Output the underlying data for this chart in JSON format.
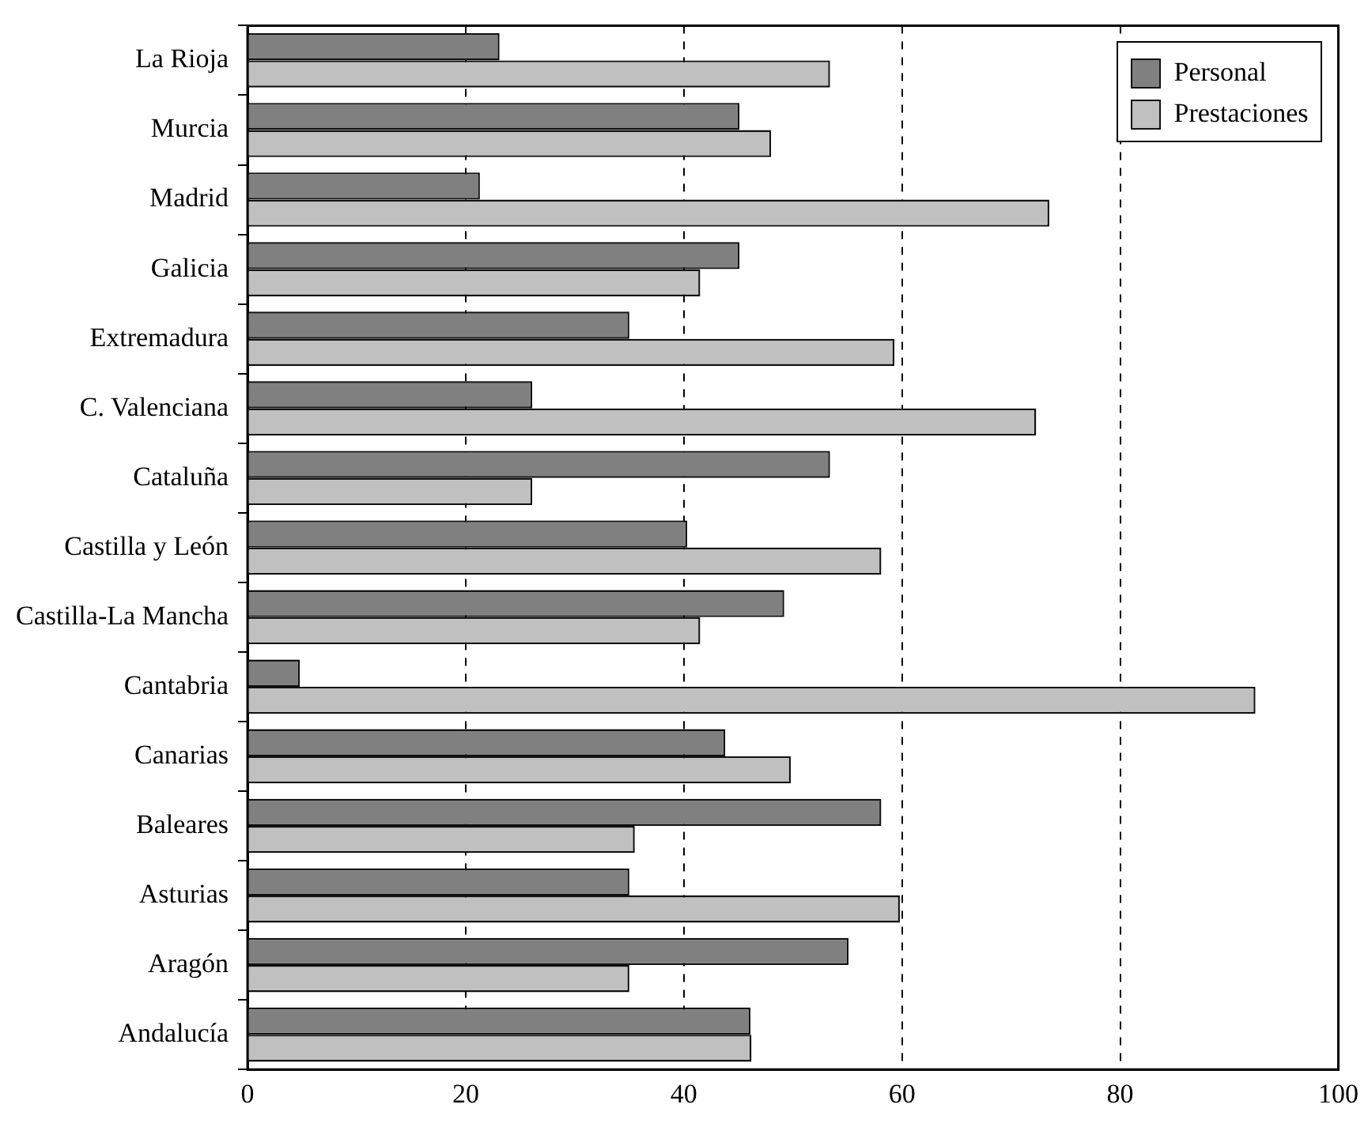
{
  "chart_data": {
    "type": "bar",
    "orientation": "horizontal",
    "categories": [
      "La Rioja",
      "Murcia",
      "Madrid",
      "Galicia",
      "Extremadura",
      "C. Valenciana",
      "Cataluña",
      "Castilla y León",
      "Castilla-La Mancha",
      "Cantabria",
      "Canarias",
      "Baleares",
      "Asturias",
      "Aragón",
      "Andalucía"
    ],
    "series": [
      {
        "name": "Personal",
        "color": "#808080",
        "values": [
          23.1,
          45.1,
          21.3,
          45.1,
          35.0,
          26.1,
          53.4,
          40.3,
          49.2,
          4.8,
          43.8,
          58.1,
          35.0,
          55.1,
          46.1
        ]
      },
      {
        "name": "Prestaciones",
        "color": "#c0c0c0",
        "values": [
          53.4,
          48.0,
          73.5,
          41.5,
          59.3,
          72.3,
          26.1,
          58.1,
          41.5,
          92.4,
          49.8,
          35.5,
          59.8,
          35.0,
          46.2
        ]
      }
    ],
    "xlim": [
      0,
      100
    ],
    "xticks": [
      0,
      20,
      40,
      60,
      80,
      100
    ],
    "grid": "x",
    "legend": "top right"
  }
}
